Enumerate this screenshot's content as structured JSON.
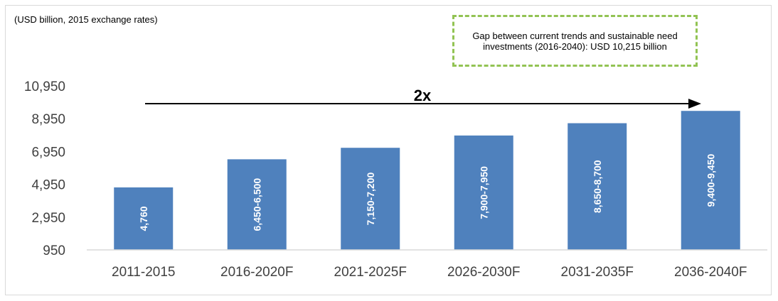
{
  "unit_note": "(USD billion, 2015 exchange rates)",
  "gap_note": "Gap between current trends and sustainable need investments (2016-2040): USD 10,215 billion",
  "arrow_label": "2x",
  "colors": {
    "bar": "#4f81bd",
    "gap_border": "#92c353",
    "axis": "#d9d9d9",
    "text": "#404040"
  },
  "chart_data": {
    "type": "bar",
    "categories": [
      "2011-2015",
      "2016-2020F",
      "2021-2025F",
      "2026-2030F",
      "2031-2035F",
      "2036-2040F"
    ],
    "values": [
      4760,
      6475,
      7175,
      7925,
      8675,
      9425
    ],
    "data_labels": [
      "4,760",
      "6,450-6,500",
      "7,150-7,200",
      "7,900-7,950",
      "8,650-8,700",
      "9,400-9,450"
    ],
    "yticks": [
      "950",
      "2,950",
      "4,950",
      "6,950",
      "8,950",
      "10,950"
    ],
    "ytick_values": [
      950,
      2950,
      4950,
      6950,
      8950,
      10950
    ],
    "ylim": [
      950,
      10950
    ],
    "title": "",
    "xlabel": "",
    "ylabel": "",
    "grid": false,
    "legend": "none"
  }
}
